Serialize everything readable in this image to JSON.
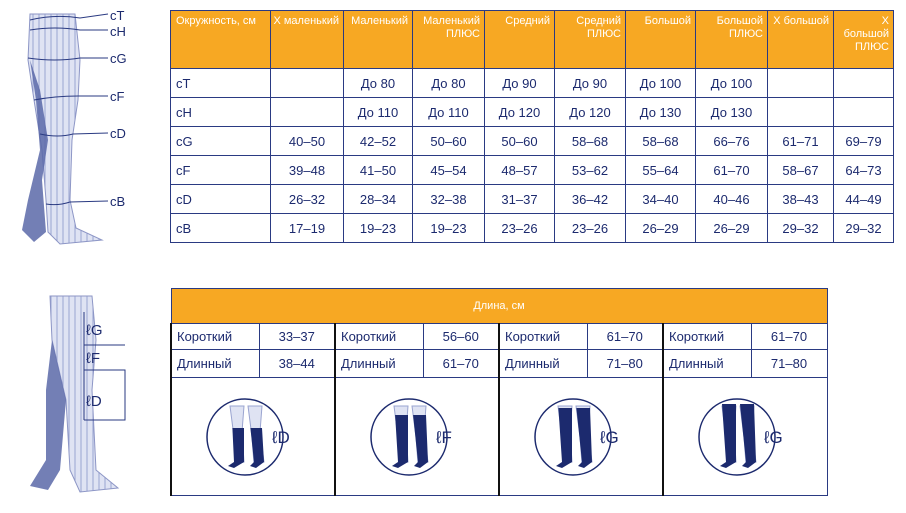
{
  "size_table": {
    "header": [
      "Окружность, см",
      "X маленький",
      "Маленький",
      "Маленький ПЛЮС",
      "Средний",
      "Средний ПЛЮС",
      "Большой",
      "Большой ПЛЮС",
      "X большой",
      "X большой ПЛЮС"
    ],
    "rows": [
      {
        "label": "cT",
        "cells": [
          null,
          "До 80",
          "До 80",
          "До 90",
          "До 90",
          "До 100",
          "До 100",
          null,
          null
        ]
      },
      {
        "label": "cH",
        "cells": [
          null,
          "До 110",
          "До 110",
          "До 120",
          "До 120",
          "До 130",
          "До 130",
          null,
          null
        ]
      },
      {
        "label": "cG",
        "cells": [
          "40–50",
          "42–52",
          "50–60",
          "50–60",
          "58–68",
          "58–68",
          "66–76",
          "61–71",
          "69–79"
        ]
      },
      {
        "label": "cF",
        "cells": [
          "39–48",
          "41–50",
          "45–54",
          "48–57",
          "53–62",
          "55–64",
          "61–70",
          "58–67",
          "64–73"
        ]
      },
      {
        "label": "cD",
        "cells": [
          "26–32",
          "28–34",
          "32–38",
          "31–37",
          "36–42",
          "34–40",
          "40–46",
          "38–43",
          "44–49"
        ]
      },
      {
        "label": "cB",
        "cells": [
          "17–19",
          "19–23",
          "19–23",
          "23–26",
          "23–26",
          "26–29",
          "26–29",
          "29–32",
          "29–32"
        ]
      }
    ]
  },
  "length_table": {
    "title": "Длина, см",
    "groups": [
      {
        "rows": [
          {
            "label": "Короткий",
            "value": "33–37"
          },
          {
            "label": "Длинный",
            "value": "38–44"
          }
        ],
        "type_label": "ℓD"
      },
      {
        "rows": [
          {
            "label": "Короткий",
            "value": "56–60"
          },
          {
            "label": "Длинный",
            "value": "61–70"
          }
        ],
        "type_label": "ℓF"
      },
      {
        "rows": [
          {
            "label": "Короткий",
            "value": "61–70"
          },
          {
            "label": "Длинный",
            "value": "71–80"
          }
        ],
        "type_label": "ℓG"
      },
      {
        "rows": [
          {
            "label": "Короткий",
            "value": "61–70"
          },
          {
            "label": "Длинный",
            "value": "71–80"
          }
        ],
        "type_label": "ℓG"
      }
    ]
  },
  "figure_labels": {
    "circumference": [
      "cT",
      "cH",
      "cG",
      "cF",
      "cD",
      "cB"
    ],
    "length": [
      "ℓG",
      "ℓF",
      "ℓD"
    ]
  }
}
